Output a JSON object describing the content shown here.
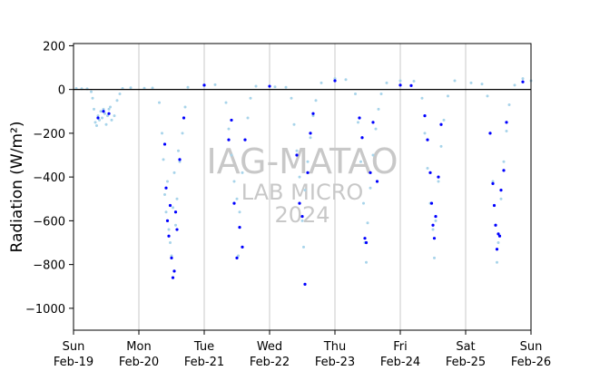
{
  "chart_data": {
    "type": "scatter",
    "title": "",
    "xlabel": "",
    "ylabel": "Radiation (W/m²)",
    "ylim": [
      -1100,
      210
    ],
    "xlim": [
      "2024-02-19",
      "2024-02-26"
    ],
    "yticks": [
      200,
      0,
      -200,
      -400,
      -600,
      -800,
      -1000
    ],
    "ytick_labels": [
      "200",
      "0",
      "−200",
      "−400",
      "−600",
      "−800",
      "−1000"
    ],
    "xticks": [
      {
        "date": "2024-02-19",
        "line1": "Sun",
        "line2": "Feb-19"
      },
      {
        "date": "2024-02-20",
        "line1": "Mon",
        "line2": "Feb-20"
      },
      {
        "date": "2024-02-21",
        "line1": "Tue",
        "line2": "Feb-21"
      },
      {
        "date": "2024-02-22",
        "line1": "Wed",
        "line2": "Feb-22"
      },
      {
        "date": "2024-02-23",
        "line1": "Thu",
        "line2": "Feb-23"
      },
      {
        "date": "2024-02-24",
        "line1": "Fri",
        "line2": "Feb-24"
      },
      {
        "date": "2024-02-25",
        "line1": "Sat",
        "line2": "Feb-25"
      },
      {
        "date": "2024-02-26",
        "line1": "Sun",
        "line2": "Feb-26"
      }
    ],
    "grid": "vertical",
    "zero_line": true,
    "watermark": [
      "IAG-MATAO",
      "LAB MICRO",
      "2024"
    ],
    "series": [
      {
        "color": "#a8d4ea",
        "points": [
          [
            "2024-02-19 01:00",
            5
          ],
          [
            "2024-02-19 03:00",
            4
          ],
          [
            "2024-02-19 05:00",
            3
          ],
          [
            "2024-02-19 06:30",
            -10
          ],
          [
            "2024-02-19 07:00",
            -40
          ],
          [
            "2024-02-19 07:30",
            -90
          ],
          [
            "2024-02-19 08:00",
            -150
          ],
          [
            "2024-02-19 08:30",
            -165
          ],
          [
            "2024-02-19 09:00",
            -120
          ],
          [
            "2024-02-19 09:30",
            -140
          ],
          [
            "2024-02-19 10:00",
            -100
          ],
          [
            "2024-02-19 10:30",
            -130
          ],
          [
            "2024-02-19 11:00",
            -90
          ],
          [
            "2024-02-19 11:30",
            -110
          ],
          [
            "2024-02-19 12:00",
            -160
          ],
          [
            "2024-02-19 12:30",
            -120
          ],
          [
            "2024-02-19 13:00",
            -90
          ],
          [
            "2024-02-19 13:30",
            -80
          ],
          [
            "2024-02-19 14:00",
            -140
          ],
          [
            "2024-02-19 15:00",
            -120
          ],
          [
            "2024-02-19 16:00",
            -50
          ],
          [
            "2024-02-19 17:00",
            -20
          ],
          [
            "2024-02-19 18:00",
            5
          ],
          [
            "2024-02-19 21:00",
            8
          ],
          [
            "2024-02-20 02:00",
            6
          ],
          [
            "2024-02-20 05:00",
            7
          ],
          [
            "2024-02-20 07:30",
            -60
          ],
          [
            "2024-02-20 08:30",
            -200
          ],
          [
            "2024-02-20 09:00",
            -320
          ],
          [
            "2024-02-20 09:30",
            -480
          ],
          [
            "2024-02-20 10:00",
            -560
          ],
          [
            "2024-02-20 10:30",
            -420
          ],
          [
            "2024-02-20 11:00",
            -640
          ],
          [
            "2024-02-20 11:30",
            -700
          ],
          [
            "2024-02-20 12:00",
            -760
          ],
          [
            "2024-02-20 12:30",
            -540
          ],
          [
            "2024-02-20 13:00",
            -380
          ],
          [
            "2024-02-20 13:30",
            -620
          ],
          [
            "2024-02-20 14:00",
            -500
          ],
          [
            "2024-02-20 14:30",
            -280
          ],
          [
            "2024-02-20 15:00",
            -330
          ],
          [
            "2024-02-20 16:00",
            -200
          ],
          [
            "2024-02-20 17:00",
            -80
          ],
          [
            "2024-02-20 18:00",
            10
          ],
          [
            "2024-02-21 00:00",
            18
          ],
          [
            "2024-02-21 04:00",
            22
          ],
          [
            "2024-02-21 08:00",
            -60
          ],
          [
            "2024-02-21 09:00",
            -180
          ],
          [
            "2024-02-21 10:00",
            -300
          ],
          [
            "2024-02-21 11:00",
            -420
          ],
          [
            "2024-02-21 12:00",
            -500
          ],
          [
            "2024-02-21 12:30",
            -760
          ],
          [
            "2024-02-21 13:00",
            -560
          ],
          [
            "2024-02-21 14:00",
            -380
          ],
          [
            "2024-02-21 15:00",
            -230
          ],
          [
            "2024-02-21 16:00",
            -130
          ],
          [
            "2024-02-21 17:00",
            -40
          ],
          [
            "2024-02-21 19:00",
            15
          ],
          [
            "2024-02-22 02:00",
            12
          ],
          [
            "2024-02-22 06:00",
            10
          ],
          [
            "2024-02-22 08:00",
            -40
          ],
          [
            "2024-02-22 09:00",
            -160
          ],
          [
            "2024-02-22 10:00",
            -280
          ],
          [
            "2024-02-22 11:00",
            -400
          ],
          [
            "2024-02-22 12:00",
            -600
          ],
          [
            "2024-02-22 12:30",
            -720
          ],
          [
            "2024-02-22 13:00",
            -460
          ],
          [
            "2024-02-22 14:00",
            -330
          ],
          [
            "2024-02-22 15:00",
            -220
          ],
          [
            "2024-02-22 16:00",
            -120
          ],
          [
            "2024-02-22 17:00",
            -50
          ],
          [
            "2024-02-22 19:00",
            30
          ],
          [
            "2024-02-23 00:00",
            50
          ],
          [
            "2024-02-23 04:00",
            45
          ],
          [
            "2024-02-23 07:30",
            -20
          ],
          [
            "2024-02-23 08:30",
            -150
          ],
          [
            "2024-02-23 09:30",
            -330
          ],
          [
            "2024-02-23 10:30",
            -520
          ],
          [
            "2024-02-23 11:00",
            -700
          ],
          [
            "2024-02-23 11:30",
            -790
          ],
          [
            "2024-02-23 12:00",
            -610
          ],
          [
            "2024-02-23 13:00",
            -450
          ],
          [
            "2024-02-23 14:00",
            -300
          ],
          [
            "2024-02-23 15:00",
            -180
          ],
          [
            "2024-02-23 16:00",
            -90
          ],
          [
            "2024-02-23 17:00",
            -20
          ],
          [
            "2024-02-23 19:00",
            30
          ],
          [
            "2024-02-24 00:00",
            40
          ],
          [
            "2024-02-24 05:00",
            38
          ],
          [
            "2024-02-24 08:00",
            -40
          ],
          [
            "2024-02-24 09:00",
            -200
          ],
          [
            "2024-02-24 10:00",
            -360
          ],
          [
            "2024-02-24 11:00",
            -520
          ],
          [
            "2024-02-24 12:00",
            -640
          ],
          [
            "2024-02-24 12:30",
            -770
          ],
          [
            "2024-02-24 13:00",
            -600
          ],
          [
            "2024-02-24 14:00",
            -420
          ],
          [
            "2024-02-24 15:00",
            -260
          ],
          [
            "2024-02-24 16:00",
            -140
          ],
          [
            "2024-02-24 17:30",
            -30
          ],
          [
            "2024-02-24 20:00",
            40
          ],
          [
            "2024-02-25 02:00",
            30
          ],
          [
            "2024-02-25 06:00",
            25
          ],
          [
            "2024-02-25 08:00",
            -30
          ],
          [
            "2024-02-25 09:00",
            -200
          ],
          [
            "2024-02-25 10:00",
            -420
          ],
          [
            "2024-02-25 11:00",
            -620
          ],
          [
            "2024-02-25 11:30",
            -790
          ],
          [
            "2024-02-25 12:00",
            -700
          ],
          [
            "2024-02-25 13:00",
            -500
          ],
          [
            "2024-02-25 14:00",
            -330
          ],
          [
            "2024-02-25 15:00",
            -190
          ],
          [
            "2024-02-25 16:00",
            -70
          ],
          [
            "2024-02-25 18:00",
            20
          ],
          [
            "2024-02-25 21:00",
            50
          ],
          [
            "2024-02-26 00:00",
            40
          ]
        ]
      },
      {
        "color": "#0000ff",
        "points": [
          [
            "2024-02-19 09:00",
            -130
          ],
          [
            "2024-02-19 11:00",
            -100
          ],
          [
            "2024-02-19 13:00",
            -110
          ],
          [
            "2024-02-20 09:30",
            -250
          ],
          [
            "2024-02-20 10:00",
            -450
          ],
          [
            "2024-02-20 10:30",
            -600
          ],
          [
            "2024-02-20 11:00",
            -670
          ],
          [
            "2024-02-20 11:30",
            -530
          ],
          [
            "2024-02-20 12:00",
            -770
          ],
          [
            "2024-02-20 12:30",
            -860
          ],
          [
            "2024-02-20 13:00",
            -830
          ],
          [
            "2024-02-20 13:30",
            -560
          ],
          [
            "2024-02-20 14:00",
            -640
          ],
          [
            "2024-02-20 15:00",
            -320
          ],
          [
            "2024-02-20 16:30",
            -130
          ],
          [
            "2024-02-21 09:00",
            -230
          ],
          [
            "2024-02-21 10:00",
            -140
          ],
          [
            "2024-02-21 11:00",
            -520
          ],
          [
            "2024-02-21 12:00",
            -770
          ],
          [
            "2024-02-21 13:00",
            -630
          ],
          [
            "2024-02-21 14:00",
            -720
          ],
          [
            "2024-02-21 15:00",
            -230
          ],
          [
            "2024-02-22 10:00",
            -300
          ],
          [
            "2024-02-22 11:00",
            -520
          ],
          [
            "2024-02-22 12:00",
            -580
          ],
          [
            "2024-02-22 13:00",
            -890
          ],
          [
            "2024-02-22 14:00",
            -380
          ],
          [
            "2024-02-22 15:00",
            -200
          ],
          [
            "2024-02-22 16:00",
            -110
          ],
          [
            "2024-02-23 09:00",
            -130
          ],
          [
            "2024-02-23 10:00",
            -220
          ],
          [
            "2024-02-23 11:00",
            -680
          ],
          [
            "2024-02-23 11:30",
            -700
          ],
          [
            "2024-02-23 13:00",
            -380
          ],
          [
            "2024-02-23 14:00",
            -150
          ],
          [
            "2024-02-23 15:30",
            -420
          ],
          [
            "2024-02-24 09:00",
            -120
          ],
          [
            "2024-02-24 10:00",
            -230
          ],
          [
            "2024-02-24 11:00",
            -380
          ],
          [
            "2024-02-24 11:30",
            -520
          ],
          [
            "2024-02-24 12:00",
            -620
          ],
          [
            "2024-02-24 12:30",
            -680
          ],
          [
            "2024-02-24 13:00",
            -580
          ],
          [
            "2024-02-24 14:00",
            -400
          ],
          [
            "2024-02-24 15:00",
            -160
          ],
          [
            "2024-02-25 09:00",
            -200
          ],
          [
            "2024-02-25 10:00",
            -430
          ],
          [
            "2024-02-25 10:30",
            -530
          ],
          [
            "2024-02-25 11:00",
            -620
          ],
          [
            "2024-02-25 11:30",
            -730
          ],
          [
            "2024-02-25 12:00",
            -660
          ],
          [
            "2024-02-25 12:30",
            -670
          ],
          [
            "2024-02-25 13:00",
            -460
          ],
          [
            "2024-02-25 14:00",
            -370
          ],
          [
            "2024-02-25 15:00",
            -150
          ],
          [
            "2024-02-21 00:00",
            20
          ],
          [
            "2024-02-22 00:00",
            15
          ],
          [
            "2024-02-23 00:00",
            40
          ],
          [
            "2024-02-24 00:00",
            20
          ],
          [
            "2024-02-24 04:00",
            18
          ],
          [
            "2024-02-25 21:00",
            35
          ]
        ]
      }
    ]
  }
}
